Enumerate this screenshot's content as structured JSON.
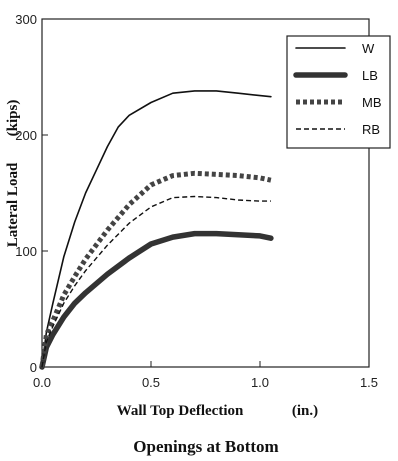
{
  "chart_data": {
    "type": "line",
    "title": "Openings at Bottom",
    "xlabel": "Wall Top Deflection",
    "xlabel_unit": "(in.)",
    "ylabel": "Lateral Load",
    "ylabel_unit": "(kips)",
    "xlim": [
      0.0,
      1.5
    ],
    "ylim": [
      0,
      300
    ],
    "xticks": [
      0.0,
      0.5,
      1.0,
      1.5
    ],
    "xtick_labels": [
      "0.0",
      "0.5",
      "1.0",
      "1.5"
    ],
    "yticks": [
      0,
      100,
      200,
      300
    ],
    "ytick_labels": [
      "0",
      "100",
      "200",
      "300"
    ],
    "grid": false,
    "legend_position": "top-right",
    "series": [
      {
        "name": "W",
        "style": "thin-solid",
        "color": "#111111",
        "x": [
          0.0,
          0.02,
          0.05,
          0.1,
          0.15,
          0.2,
          0.25,
          0.3,
          0.35,
          0.4,
          0.5,
          0.6,
          0.7,
          0.8,
          0.9,
          1.0,
          1.05
        ],
        "y": [
          0,
          30,
          55,
          95,
          125,
          150,
          170,
          190,
          207,
          217,
          228,
          236,
          238,
          238,
          236,
          234,
          233
        ]
      },
      {
        "name": "LB",
        "style": "thick-solid",
        "color": "#333333",
        "x": [
          0.0,
          0.02,
          0.05,
          0.1,
          0.15,
          0.2,
          0.3,
          0.4,
          0.5,
          0.6,
          0.7,
          0.8,
          0.9,
          1.0,
          1.05
        ],
        "y": [
          0,
          17,
          28,
          43,
          55,
          64,
          80,
          94,
          106,
          112,
          115,
          115,
          114,
          113,
          111
        ]
      },
      {
        "name": "MB",
        "style": "thick-dotted",
        "color": "#444444",
        "x": [
          0.0,
          0.02,
          0.05,
          0.1,
          0.15,
          0.2,
          0.3,
          0.4,
          0.5,
          0.6,
          0.7,
          0.8,
          0.9,
          1.0,
          1.05
        ],
        "y": [
          0,
          28,
          40,
          62,
          78,
          93,
          118,
          140,
          157,
          165,
          167,
          166,
          165,
          163,
          161
        ]
      },
      {
        "name": "RB",
        "style": "thin-dashed",
        "color": "#111111",
        "x": [
          0.0,
          0.02,
          0.05,
          0.1,
          0.15,
          0.2,
          0.3,
          0.4,
          0.5,
          0.6,
          0.7,
          0.8,
          0.9,
          1.0,
          1.05
        ],
        "y": [
          0,
          22,
          35,
          55,
          70,
          83,
          105,
          124,
          138,
          146,
          147,
          146,
          144,
          143,
          143
        ]
      }
    ]
  }
}
